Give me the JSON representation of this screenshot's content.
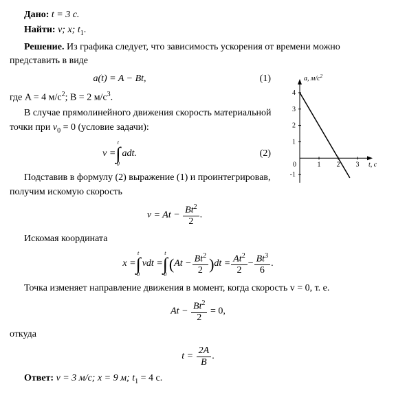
{
  "text": {
    "given_label": "Дано:",
    "given_value": "t = 3 с.",
    "find_label": "Найти:",
    "find_value": "v; x; t",
    "find_sub": "1",
    "solution_label": "Решение.",
    "solution_tail": " Из графика следует, что зависимость ускорения от времени можно представить в виде",
    "eq1": "a(t) = A − Bt,",
    "eq1_num": "(1)",
    "where_A": "где A = 4 м/с",
    "where_A_exp": "2",
    "where_B": "; B = 2 м/с",
    "where_B_exp": "3",
    "where_end": ".",
    "para2a": "В случае прямолинейного движения скорость материальной точки при ",
    "para2_v0": "v",
    "para2_eq0": " = 0 (условие задачи):",
    "eq2_left": "v = ",
    "eq2_int_top": "t",
    "eq2_int_bot": "0",
    "eq2_body": "adt.",
    "eq2_num": "(2)",
    "para3": "Подставив в формулу (2) выражение (1) и проинтегрировав, получим искомую скорость",
    "eq3_left": "v = At − ",
    "eq3_num_top": "Bt",
    "eq3_num_exp": "2",
    "eq3_den": "2",
    "eq3_end": ".",
    "para4": "Искомая координата",
    "eq4_x": "x = ",
    "eq4_int1_body": "vdt = ",
    "eq4_int2_open": "(",
    "eq4_int2_a": "At − ",
    "eq4_int2_close": ")",
    "eq4_int2_dt": "dt = ",
    "eq4_t1_num": "At",
    "eq4_t1_exp": "2",
    "eq4_t1_den": "2",
    "eq4_minus": " − ",
    "eq4_t2_num": "Bt",
    "eq4_t2_exp": "3",
    "eq4_t2_den": "6",
    "para5": "Точка изменяет направление движения в момент, когда скорость v = 0, т. е.",
    "eq5_left": "At − ",
    "eq5_end": " = 0,",
    "para6": "откуда",
    "eq6_left": "t = ",
    "eq6_num": "2A",
    "eq6_den": "B",
    "eq6_end": ".",
    "ans_label": "Ответ:",
    "ans_body": " v = 3 м/с; x = 9 м; t",
    "ans_sub": "1",
    "ans_end": " = 4 с."
  },
  "chart": {
    "type": "line",
    "width": 150,
    "height": 175,
    "background": "#ffffff",
    "axis_color": "#000000",
    "line_color": "#000000",
    "line_width": 1.5,
    "xlabel": "t, с",
    "ylabel": "a, м/с",
    "ylabel_exp": "2",
    "xlim": [
      0,
      3.5
    ],
    "ylim": [
      -1.5,
      4.5
    ],
    "xticks": [
      1,
      2,
      3
    ],
    "yticks": [
      -1,
      1,
      2,
      3,
      4
    ],
    "data_x": [
      0,
      2.6
    ],
    "data_y": [
      4,
      -1.2
    ],
    "fontsize": 10
  }
}
